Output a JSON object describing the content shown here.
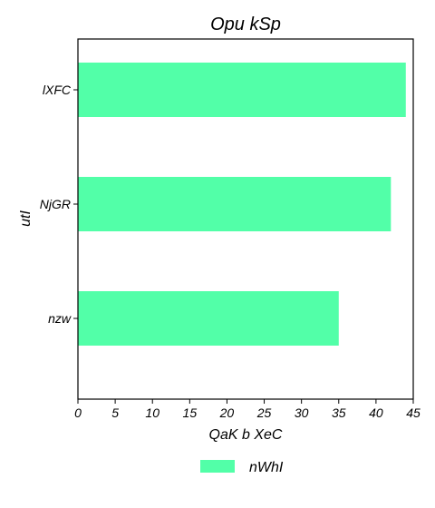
{
  "chart_data": {
    "type": "bar",
    "orientation": "horizontal",
    "title": "Opu kSp",
    "xlabel": "QaK b XeC",
    "ylabel": "utI",
    "categories": [
      "nzw",
      "NjGR",
      "lXFC"
    ],
    "series": [
      {
        "name": "nWhI",
        "values": [
          35,
          42,
          44
        ],
        "color": "#52ffa8"
      }
    ],
    "xlim": [
      0,
      45
    ],
    "xticks": [
      0,
      5,
      10,
      15,
      20,
      25,
      30,
      35,
      40,
      45
    ],
    "xtick_labels": [
      "0",
      "5",
      "10",
      "15",
      "20",
      "25",
      "30",
      "35",
      "40",
      "45"
    ],
    "grid": false,
    "legend_position": "bottom-center"
  }
}
